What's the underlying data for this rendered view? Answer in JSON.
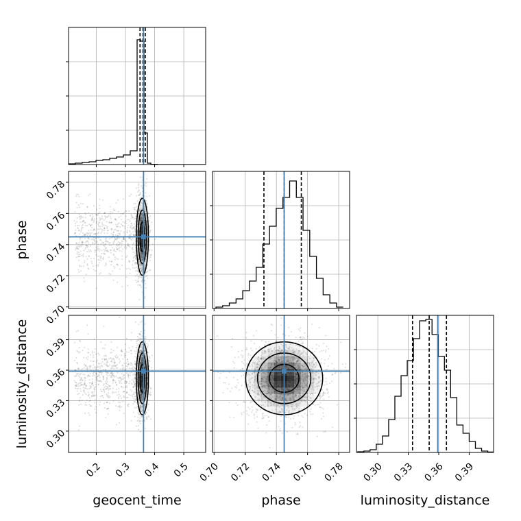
{
  "chart_data": {
    "type": "corner",
    "parameters": [
      "geocent_time",
      "phase",
      "luminosity_distance"
    ],
    "axis_labels": {
      "geocent_time": "geocent_time",
      "phase": "phase",
      "luminosity_distance": "luminosity_distance"
    },
    "ranges": {
      "geocent_time": [
        0.105,
        0.575
      ],
      "phase": [
        0.699,
        0.787
      ],
      "luminosity_distance": [
        0.279,
        0.414
      ]
    },
    "ticks": {
      "geocent_time": [
        "0.2",
        "0.3",
        "0.4",
        "0.5"
      ],
      "phase": [
        "0.70",
        "0.72",
        "0.74",
        "0.76",
        "0.78"
      ],
      "luminosity_distance": [
        "0.30",
        "0.33",
        "0.36",
        "0.39"
      ]
    },
    "injection_values": {
      "geocent_time": 0.362,
      "phase": 0.745,
      "luminosity_distance": 0.359
    },
    "quantiles": {
      "geocent_time": [
        0.35,
        0.36,
        0.368
      ],
      "phase": [
        0.732,
        0.745,
        0.756
      ],
      "luminosity_distance": [
        0.3342,
        0.3506,
        0.3676
      ]
    },
    "histograms": {
      "geocent_time": {
        "bin_edges": [
          0.105,
          0.1285,
          0.152,
          0.1755,
          0.199,
          0.2225,
          0.246,
          0.2695,
          0.293,
          0.3165,
          0.34,
          0.3517,
          0.3635,
          0.3753,
          0.387,
          0.41,
          0.575
        ],
        "counts": [
          0.005,
          0.01,
          0.015,
          0.02,
          0.03,
          0.035,
          0.045,
          0.055,
          0.07,
          0.1,
          0.91,
          0.9,
          0.23,
          0.01,
          0.002,
          0
        ]
      },
      "phase": {
        "bin_edges": [
          0.7012,
          0.7055,
          0.7098,
          0.7141,
          0.7184,
          0.7227,
          0.727,
          0.7313,
          0.7356,
          0.7399,
          0.7442,
          0.7485,
          0.7528,
          0.7571,
          0.7614,
          0.7657,
          0.77,
          0.7743,
          0.7786,
          0.7829
        ],
        "counts": [
          0.01,
          0.02,
          0.04,
          0.07,
          0.13,
          0.2,
          0.3,
          0.47,
          0.6,
          0.73,
          0.81,
          0.93,
          0.81,
          0.57,
          0.38,
          0.22,
          0.1,
          0.04,
          0.01
        ]
      },
      "luminosity_distance": {
        "bin_edges": [
          0.2802,
          0.2863,
          0.2924,
          0.2985,
          0.3046,
          0.3107,
          0.3168,
          0.3229,
          0.329,
          0.3351,
          0.3412,
          0.3473,
          0.3534,
          0.3595,
          0.3656,
          0.3717,
          0.3778,
          0.3839,
          0.39,
          0.3961,
          0.4022,
          0.4083,
          0.414
        ],
        "counts": [
          0.005,
          0.01,
          0.02,
          0.06,
          0.12,
          0.24,
          0.41,
          0.56,
          0.67,
          0.83,
          0.96,
          0.97,
          0.86,
          0.7,
          0.6,
          0.4,
          0.2,
          0.14,
          0.08,
          0.03,
          0.01,
          0.003
        ]
      }
    },
    "joint_2d": [
      {
        "x": "geocent_time",
        "y": "phase",
        "center": [
          0.358,
          0.745
        ],
        "sigma": [
          0.008,
          0.0095
        ],
        "tail": "low-x"
      },
      {
        "x": "geocent_time",
        "y": "luminosity_distance",
        "center": [
          0.358,
          0.352
        ],
        "sigma": [
          0.008,
          0.0138
        ],
        "tail": "low-x"
      },
      {
        "x": "phase",
        "y": "luminosity_distance",
        "center": [
          0.745,
          0.352
        ],
        "sigma": [
          0.0095,
          0.0138
        ],
        "tail": "none"
      }
    ],
    "contour_levels": [
      "1-sigma",
      "2-sigma",
      "3-sigma"
    ],
    "grid": true,
    "colors": {
      "truth_line": "#4682b4",
      "histogram": "#000000",
      "density": "#000000",
      "grid": "#b0b0b0"
    },
    "legend": "none"
  }
}
